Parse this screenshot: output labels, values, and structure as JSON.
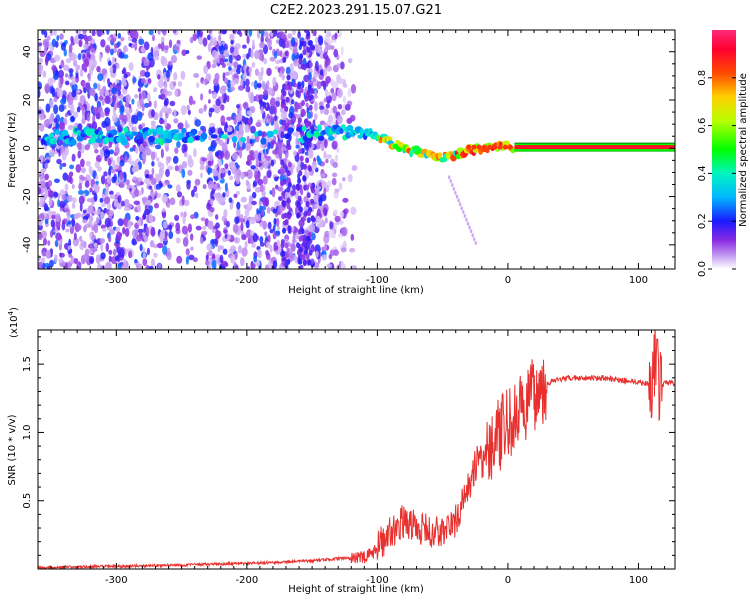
{
  "title": "C2E2.2023.291.15.07.G21",
  "colors": {
    "snr_line": "#e8312f",
    "axes": "#000000",
    "zero_line": "#00c000"
  },
  "chart_data": [
    {
      "type": "heatmap",
      "xlabel": "Height of straight line (km)",
      "ylabel": "Frequency (Hz)",
      "xlim": [
        -360,
        128
      ],
      "ylim": [
        -50,
        49
      ],
      "xticks": [
        -300,
        -200,
        -100,
        0,
        100
      ],
      "yticks": [
        -40,
        -20,
        0,
        20,
        40
      ],
      "colorbar": {
        "label": "Normalized spectral amplitude",
        "ticks": [
          "0.0",
          "0.2",
          "0.4",
          "0.6",
          "0.8"
        ],
        "range": [
          0.0,
          1.0
        ],
        "colormap": "rainbow"
      },
      "features": [
        {
          "description": "strong line near 0 Hz",
          "x_range": [
            -360,
            128
          ],
          "frequency_hz": 3,
          "amplitude": "0.3 to 0.9"
        },
        {
          "description": "scattered noise",
          "x_range": [
            -360,
            -110
          ],
          "frequency_range_hz": [
            -50,
            49
          ],
          "amplitude": "0.05 to 0.3"
        }
      ],
      "ridge": [
        [
          -355,
          5
        ],
        [
          -300,
          5
        ],
        [
          -240,
          5
        ],
        [
          -200,
          5
        ],
        [
          -150,
          6
        ],
        [
          -120,
          7
        ],
        [
          -100,
          5
        ],
        [
          -80,
          0
        ],
        [
          -60,
          -3
        ],
        [
          -45,
          -4
        ],
        [
          -30,
          -1
        ],
        [
          -10,
          1
        ],
        [
          0,
          1
        ],
        [
          10,
          0
        ],
        [
          128,
          0
        ]
      ]
    },
    {
      "type": "line",
      "xlabel": "Height of straight line (km)",
      "ylabel": "SNR (10 * v/v)",
      "y_multiplier": "(x10^4)",
      "xlim": [
        -360,
        128
      ],
      "ylim": [
        0,
        1.75
      ],
      "xticks": [
        -300,
        -200,
        -100,
        0,
        100
      ],
      "yticks": [
        "0.5",
        "1.0",
        "1.5"
      ],
      "y_tick_values": [
        0.5,
        1.0,
        1.5
      ],
      "x": [
        -360,
        -300,
        -250,
        -200,
        -150,
        -125,
        -110,
        -100,
        -90,
        -80,
        -70,
        -60,
        -50,
        -40,
        -30,
        -20,
        -10,
        0,
        10,
        20,
        30,
        40,
        50,
        70,
        90,
        100,
        105,
        110,
        113,
        116,
        120,
        128
      ],
      "y": [
        0.01,
        0.02,
        0.03,
        0.04,
        0.06,
        0.08,
        0.06,
        0.12,
        0.22,
        0.3,
        0.26,
        0.22,
        0.22,
        0.3,
        0.55,
        0.85,
        0.95,
        1.05,
        1.15,
        1.28,
        1.36,
        1.39,
        1.4,
        1.4,
        1.38,
        1.37,
        1.36,
        1.35,
        1.6,
        1.3,
        1.36,
        1.36
      ]
    }
  ]
}
